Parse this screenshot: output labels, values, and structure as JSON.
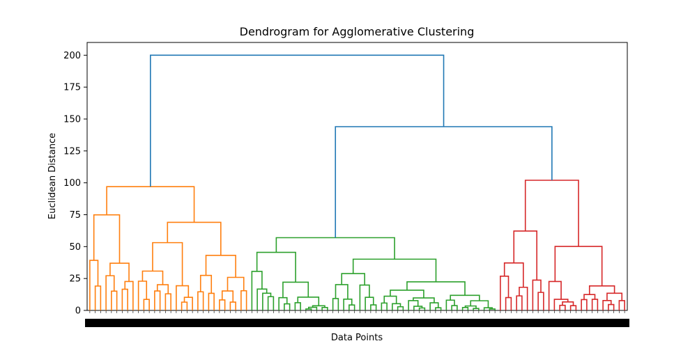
{
  "chart_data": {
    "type": "dendrogram",
    "title": "Dendrogram for Agglomerative Clustering",
    "xlabel": "Data Points",
    "ylabel": "Euclidean Distance",
    "ylim": [
      0,
      210
    ],
    "yticks": [
      0,
      25,
      50,
      75,
      100,
      125,
      150,
      175,
      200
    ],
    "x_tick_labels": "dense, unreadable (overlapping leaf indices)",
    "colors": {
      "root": "#1f77b4",
      "cluster_orange": "#ff7f0e",
      "cluster_green": "#2ca02c",
      "cluster_red": "#d62728"
    },
    "clusters": [
      {
        "color": "#ff7f0e",
        "merge_height": 97,
        "leaf_span": [
          0,
          30
        ]
      },
      {
        "color": "#2ca02c",
        "merge_height": 57,
        "leaf_span": [
          30,
          76
        ]
      },
      {
        "color": "#d62728",
        "merge_height": 102,
        "leaf_span": [
          76,
          100
        ]
      }
    ],
    "top_merges": [
      {
        "height": 200,
        "joins": [
          "orange cluster",
          "green+red"
        ]
      },
      {
        "height": 144,
        "joins": [
          "green cluster",
          "red cluster"
        ]
      }
    ],
    "leaf_count_approx": 100
  }
}
